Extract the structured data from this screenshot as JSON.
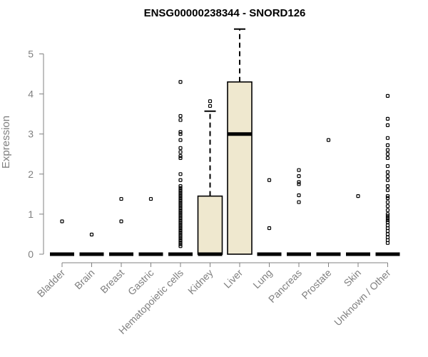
{
  "chart_data": {
    "type": "boxplot",
    "title": "ENSG00000238344 - SNORD126",
    "ylabel": "Expression",
    "xlabel": "",
    "ylim": [
      0,
      5.6
    ],
    "yticks": [
      0,
      1,
      2,
      3,
      4,
      5
    ],
    "grid": false,
    "legend": "none",
    "box_fill": "#efe8cf",
    "categories": [
      "Bladder",
      "Brain",
      "Breast",
      "Gastric",
      "Hematopoietic cells",
      "Kidney",
      "Liver",
      "Lung",
      "Pancreas",
      "Prostate",
      "Skin",
      "Unknown / Other"
    ],
    "boxes": [
      {
        "name": "Bladder",
        "q1": 0,
        "median": 0,
        "q3": 0,
        "whisker_low": 0,
        "whisker_high": 0,
        "outliers": [
          0.82
        ]
      },
      {
        "name": "Brain",
        "q1": 0,
        "median": 0,
        "q3": 0,
        "whisker_low": 0,
        "whisker_high": 0,
        "outliers": [
          0.49
        ]
      },
      {
        "name": "Breast",
        "q1": 0,
        "median": 0,
        "q3": 0,
        "whisker_low": 0,
        "whisker_high": 0,
        "outliers": [
          0.82,
          1.38
        ]
      },
      {
        "name": "Gastric",
        "q1": 0,
        "median": 0,
        "q3": 0,
        "whisker_low": 0,
        "whisker_high": 0,
        "outliers": [
          1.38
        ]
      },
      {
        "name": "Hematopoietic cells",
        "q1": 0,
        "median": 0,
        "q3": 0,
        "whisker_low": 0,
        "whisker_high": 0,
        "outliers": [
          4.3,
          3.45,
          3.35,
          3.05,
          3.0,
          2.85,
          2.65,
          2.55,
          2.45,
          2.4,
          2.0,
          1.85,
          1.7,
          1.65,
          1.6,
          1.55,
          1.5,
          1.45,
          1.4,
          1.35,
          1.3,
          1.25,
          1.2,
          1.15,
          1.1,
          1.05,
          1.0,
          0.95,
          0.9,
          0.85,
          0.8,
          0.75,
          0.7,
          0.65,
          0.6,
          0.55,
          0.5,
          0.45,
          0.4,
          0.35,
          0.3,
          0.25,
          0.2
        ]
      },
      {
        "name": "Kidney",
        "q1": 0,
        "median": 0,
        "q3": 1.45,
        "whisker_low": 0,
        "whisker_high": 3.57,
        "outliers": [
          3.82,
          3.7
        ]
      },
      {
        "name": "Liver",
        "q1": 0,
        "median": 3.0,
        "q3": 4.3,
        "whisker_low": 0,
        "whisker_high": 5.62,
        "outliers": []
      },
      {
        "name": "Lung",
        "q1": 0,
        "median": 0,
        "q3": 0,
        "whisker_low": 0,
        "whisker_high": 0,
        "outliers": [
          1.85,
          0.65
        ]
      },
      {
        "name": "Pancreas",
        "q1": 0,
        "median": 0,
        "q3": 0,
        "whisker_low": 0,
        "whisker_high": 0,
        "outliers": [
          2.1,
          1.95,
          1.8,
          1.75,
          1.47,
          1.3
        ]
      },
      {
        "name": "Prostate",
        "q1": 0,
        "median": 0,
        "q3": 0,
        "whisker_low": 0,
        "whisker_high": 0,
        "outliers": [
          2.85
        ]
      },
      {
        "name": "Skin",
        "q1": 0,
        "median": 0,
        "q3": 0,
        "whisker_low": 0,
        "whisker_high": 0,
        "outliers": [
          1.45
        ]
      },
      {
        "name": "Unknown / Other",
        "q1": 0,
        "median": 0,
        "q3": 0,
        "whisker_low": 0,
        "whisker_high": 0,
        "outliers": [
          3.95,
          3.38,
          3.22,
          2.9,
          2.72,
          2.6,
          2.5,
          2.4,
          2.2,
          2.05,
          1.95,
          1.85,
          1.7,
          1.6,
          1.45,
          1.4,
          1.3,
          1.2,
          1.1,
          1.0,
          0.95,
          0.9,
          0.85,
          0.8,
          0.72,
          0.65,
          0.58,
          0.5,
          0.42,
          0.35,
          0.28
        ]
      }
    ]
  }
}
